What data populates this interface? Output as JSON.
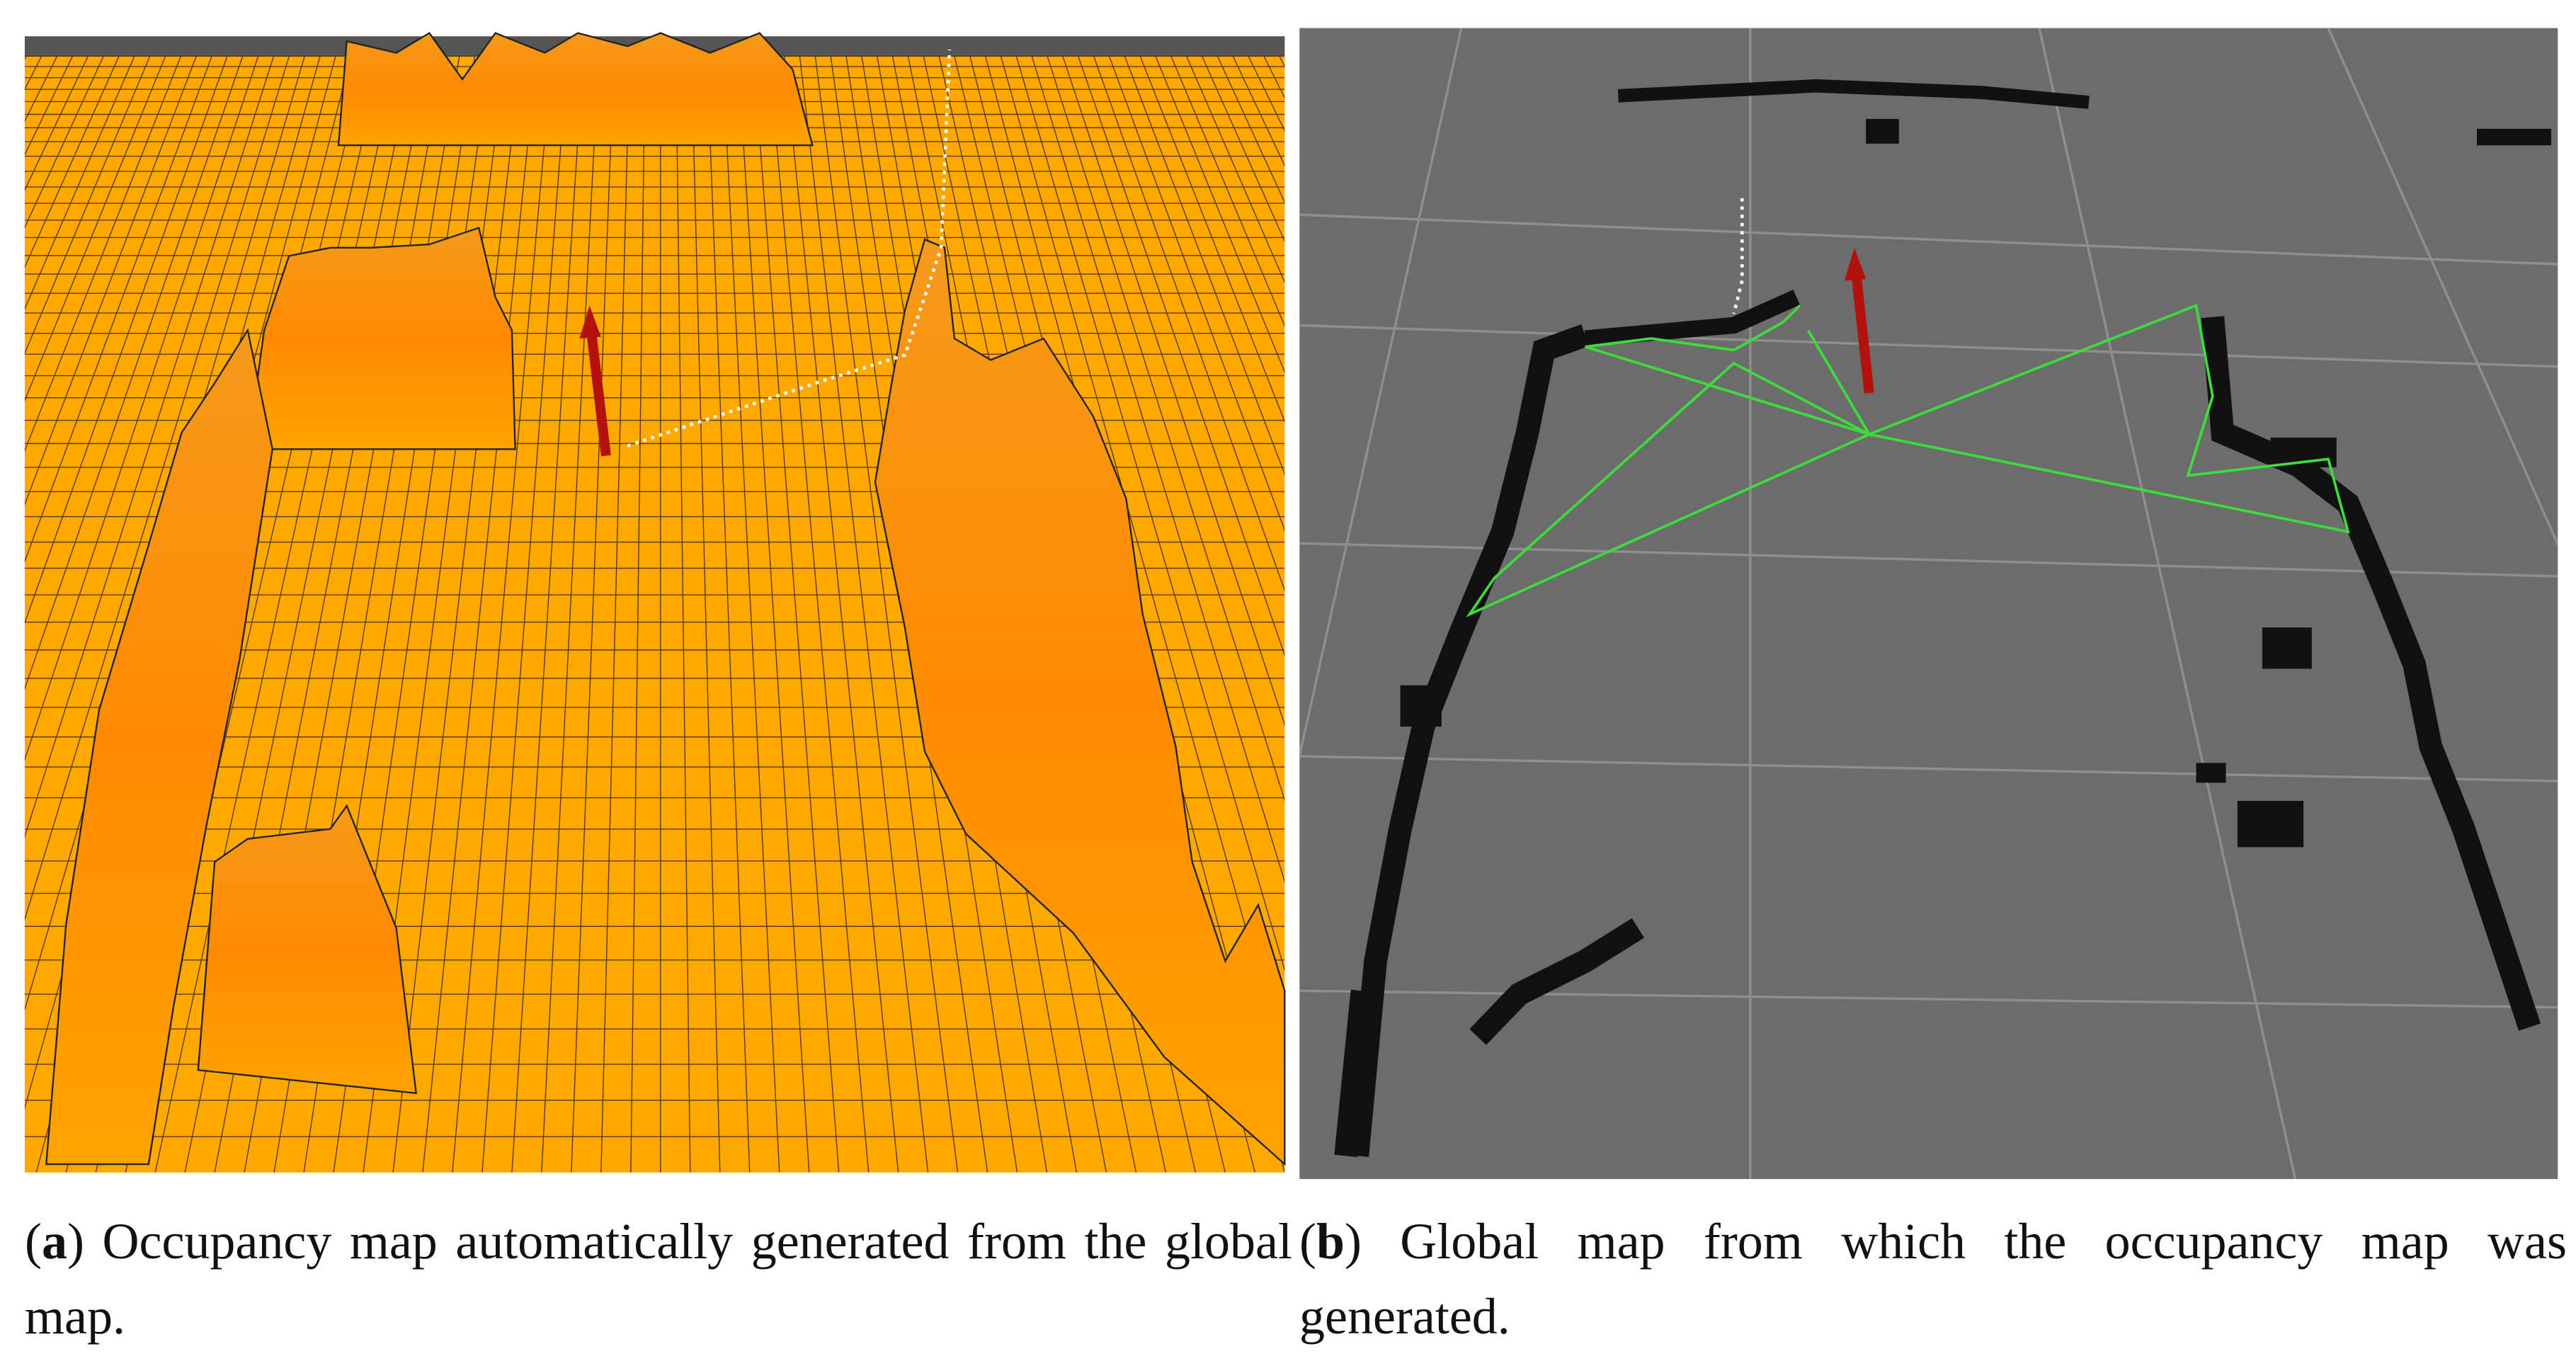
{
  "panels": [
    {
      "caption": [
        "(",
        "a",
        ") Occupancy map automatically generated from the global map."
      ]
    },
    {
      "caption": [
        "(",
        "b",
        ") Global map from which the occupancy map was generated."
      ]
    }
  ]
}
